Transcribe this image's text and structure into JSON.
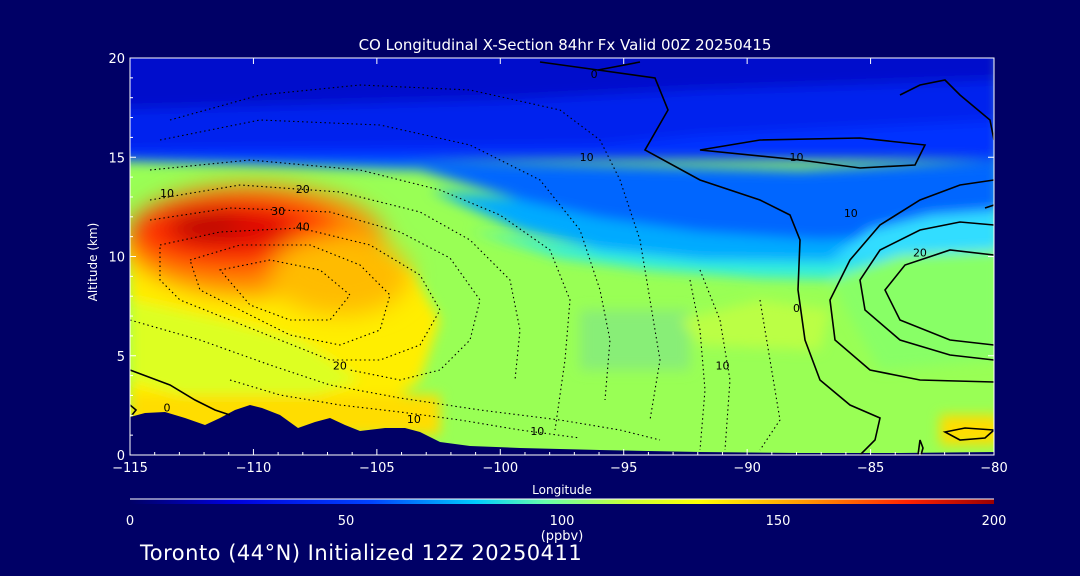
{
  "chart_data": {
    "type": "heatmap",
    "title": "CO Longitudinal X-Section 84hr  Fx Valid 00Z 20250415",
    "xlabel": "Longitude",
    "ylabel": "Altitude (km)",
    "xlim": [
      -115,
      -80
    ],
    "ylim": [
      0,
      20
    ],
    "x_ticks": [
      "-115",
      "-110",
      "-105",
      "-100",
      "-95",
      "-90",
      "-85",
      "-80"
    ],
    "y_ticks": [
      "0",
      "5",
      "10",
      "15",
      "20"
    ],
    "colorbar": {
      "min": 0,
      "max": 200,
      "ticks": [
        "0",
        "50",
        "100",
        "150",
        "200"
      ],
      "unit": "(ppbv)"
    },
    "contour_labels": [
      {
        "text": "0",
        "lon": -96.2,
        "alt": 19.0
      },
      {
        "text": "10",
        "lon": -88.0,
        "alt": 14.8
      },
      {
        "text": "10",
        "lon": -85.8,
        "alt": 12.0
      },
      {
        "text": "20",
        "lon": -83.0,
        "alt": 10.0
      },
      {
        "text": "10",
        "lon": -96.5,
        "alt": 14.8
      },
      {
        "text": "10",
        "lon": -113.5,
        "alt": 13.0
      },
      {
        "text": "20",
        "lon": -108.0,
        "alt": 13.2
      },
      {
        "text": "30",
        "lon": -109.0,
        "alt": 12.1
      },
      {
        "text": "40",
        "lon": -108.0,
        "alt": 11.3
      },
      {
        "text": "0",
        "lon": -88.0,
        "alt": 7.2
      },
      {
        "text": "10",
        "lon": -91.0,
        "alt": 4.3
      },
      {
        "text": "20",
        "lon": -106.5,
        "alt": 4.3
      },
      {
        "text": "10",
        "lon": -103.5,
        "alt": 1.6
      },
      {
        "text": "10",
        "lon": -98.5,
        "alt": 1.0
      },
      {
        "text": "0",
        "lon": -113.5,
        "alt": 2.2
      }
    ]
  },
  "footer": "Toronto (44°N) Initialized 12Z 20250411",
  "colors": {
    "background": "#000066",
    "text": "#ffffff",
    "terrain": "#000066",
    "contour": "#000000"
  }
}
